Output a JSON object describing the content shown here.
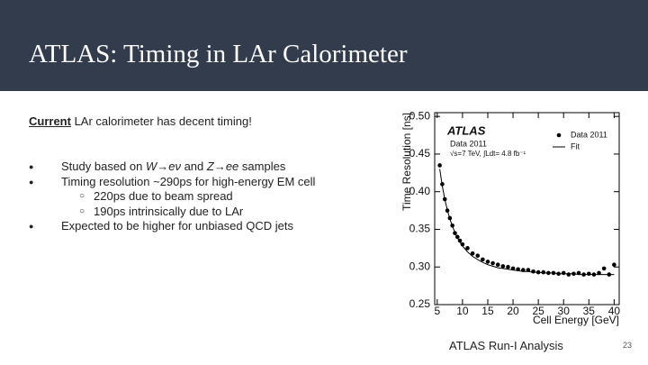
{
  "header": {
    "title": "ATLAS: Timing in LAr Calorimeter"
  },
  "body": {
    "lead": {
      "emphasis": "Current",
      "text": " LAr calorimeter has decent timing!"
    },
    "bullets": [
      {
        "level": 1,
        "parts": [
          "Study based on ",
          "W→eν",
          " and ",
          "Z→ee",
          " samples"
        ]
      },
      {
        "level": 1,
        "parts": [
          "Timing resolution ~290ps for high-energy EM cell"
        ]
      },
      {
        "level": 2,
        "parts": [
          "220ps due to beam spread"
        ]
      },
      {
        "level": 2,
        "parts": [
          "190ps intrinsically due to LAr"
        ]
      },
      {
        "level": 1,
        "parts": [
          "Expected to be higher for unbiased QCD jets"
        ]
      }
    ],
    "caption": "ATLAS Run-I Analysis",
    "page_number": "23"
  },
  "chart_data": {
    "type": "scatter",
    "x_label": "Cell Energy [GeV]",
    "y_label": "Time Resolution [ns]",
    "annotations": [
      "ATLAS",
      "Data 2011",
      "√s=7 TeV, ∫Ldt= 4.8 fb⁻¹"
    ],
    "x": [
      5.5,
      6,
      6.5,
      7,
      7.5,
      8,
      8.5,
      9,
      9.5,
      10,
      11,
      12,
      13,
      14,
      15,
      16,
      17,
      18,
      19,
      20,
      21,
      22,
      23,
      24,
      25,
      26,
      27,
      28,
      29,
      30,
      31,
      32,
      33,
      34,
      35,
      36,
      37,
      38,
      39,
      40
    ],
    "series": [
      {
        "name": "Data 2011",
        "color": "#000000",
        "values": [
          0.435,
          0.41,
          0.39,
          0.375,
          0.365,
          0.355,
          0.345,
          0.34,
          0.335,
          0.33,
          0.325,
          0.318,
          0.315,
          0.31,
          0.307,
          0.305,
          0.303,
          0.301,
          0.3,
          0.298,
          0.297,
          0.296,
          0.296,
          0.294,
          0.293,
          0.293,
          0.292,
          0.292,
          0.291,
          0.292,
          0.29,
          0.291,
          0.292,
          0.29,
          0.291,
          0.29,
          0.292,
          0.298,
          0.29,
          0.303
        ]
      },
      {
        "name": "Fit",
        "color": "#000000",
        "values": [
          0.43,
          0.408,
          0.39,
          0.376,
          0.364,
          0.354,
          0.346,
          0.339,
          0.333,
          0.328,
          0.32,
          0.314,
          0.31,
          0.306,
          0.303,
          0.301,
          0.299,
          0.298,
          0.297,
          0.296,
          0.295,
          0.294,
          0.294,
          0.293,
          0.293,
          0.292,
          0.292,
          0.292,
          0.291,
          0.291,
          0.291,
          0.291,
          0.29,
          0.29,
          0.29,
          0.29,
          0.29,
          0.29,
          0.29,
          0.29
        ]
      }
    ],
    "xlim": [
      4.5,
      41
    ],
    "ylim": [
      0.25,
      0.505
    ],
    "xticks": [
      5,
      10,
      15,
      20,
      25,
      30,
      35,
      40
    ],
    "yticks": [
      0.25,
      {
        "value": 0.3,
        "label": "0.30"
      },
      0.35,
      {
        "value": 0.4,
        "label": "0.40"
      },
      0.45,
      {
        "value": 0.5,
        "label": "0.50"
      }
    ]
  }
}
